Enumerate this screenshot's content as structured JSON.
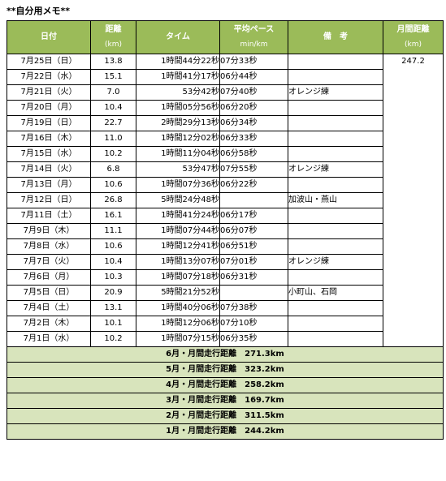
{
  "memo_title": "**自分用メモ**",
  "headers": {
    "date": "日付",
    "distance": "距離",
    "distance_unit": "(km)",
    "time": "タイム",
    "pace": "平均ペース",
    "pace_unit": "min/km",
    "note": "備　考",
    "monthly": "月間距離",
    "monthly_unit": "(km)"
  },
  "monthly_total": "247.2",
  "rows": [
    {
      "date": "7月25日（日）",
      "distance": "13.8",
      "time": "1時間44分22秒",
      "pace": "07分33秒",
      "note": ""
    },
    {
      "date": "7月22日（水）",
      "distance": "15.1",
      "time": "1時間41分17秒",
      "pace": "06分44秒",
      "note": ""
    },
    {
      "date": "7月21日（火）",
      "distance": "7.0",
      "time": "53分42秒",
      "pace": "07分40秒",
      "note": "オレンジ練"
    },
    {
      "date": "7月20日（月）",
      "distance": "10.4",
      "time": "1時間05分56秒",
      "pace": "06分20秒",
      "note": ""
    },
    {
      "date": "7月19日（日）",
      "distance": "22.7",
      "time": "2時間29分13秒",
      "pace": "06分34秒",
      "note": ""
    },
    {
      "date": "7月16日（木）",
      "distance": "11.0",
      "time": "1時間12分02秒",
      "pace": "06分33秒",
      "note": ""
    },
    {
      "date": "7月15日（水）",
      "distance": "10.2",
      "time": "1時間11分04秒",
      "pace": "06分58秒",
      "note": ""
    },
    {
      "date": "7月14日（火）",
      "distance": "6.8",
      "time": "53分47秒",
      "pace": "07分55秒",
      "note": "オレンジ練"
    },
    {
      "date": "7月13日（月）",
      "distance": "10.6",
      "time": "1時間07分36秒",
      "pace": "06分22秒",
      "note": ""
    },
    {
      "date": "7月12日（日）",
      "distance": "26.8",
      "time": "5時間24分48秒",
      "pace": "",
      "note": "加波山・燕山"
    },
    {
      "date": "7月11日（土）",
      "distance": "16.1",
      "time": "1時間41分24秒",
      "pace": "06分17秒",
      "note": ""
    },
    {
      "date": "7月9日（木）",
      "distance": "11.1",
      "time": "1時間07分44秒",
      "pace": "06分07秒",
      "note": ""
    },
    {
      "date": "7月8日（水）",
      "distance": "10.6",
      "time": "1時間12分41秒",
      "pace": "06分51秒",
      "note": ""
    },
    {
      "date": "7月7日（火）",
      "distance": "10.4",
      "time": "1時間13分07秒",
      "pace": "07分01秒",
      "note": "オレンジ練"
    },
    {
      "date": "7月6日（月）",
      "distance": "10.3",
      "time": "1時間07分18秒",
      "pace": "06分31秒",
      "note": ""
    },
    {
      "date": "7月5日（日）",
      "distance": "20.9",
      "time": "5時間21分52秒",
      "pace": "",
      "note": "小町山、石岡"
    },
    {
      "date": "7月4日（土）",
      "distance": "13.1",
      "time": "1時間40分06秒",
      "pace": "07分38秒",
      "note": ""
    },
    {
      "date": "7月2日（木）",
      "distance": "10.1",
      "time": "1時間12分06秒",
      "pace": "07分10秒",
      "note": ""
    },
    {
      "date": "7月1日（水）",
      "distance": "10.2",
      "time": "1時間07分15秒",
      "pace": "06分35秒",
      "note": ""
    }
  ],
  "summaries": [
    "6月・月間走行距離　271.3km",
    "5月・月間走行距離　323.2km",
    "4月・月間走行距離　258.2km",
    "3月・月間走行距離　169.7km",
    "2月・月間走行距離　311.5km",
    "1月・月間走行距離　244.2km"
  ],
  "colors": {
    "header_green": "#9bbb59",
    "summary_green": "#d8e4bc"
  }
}
